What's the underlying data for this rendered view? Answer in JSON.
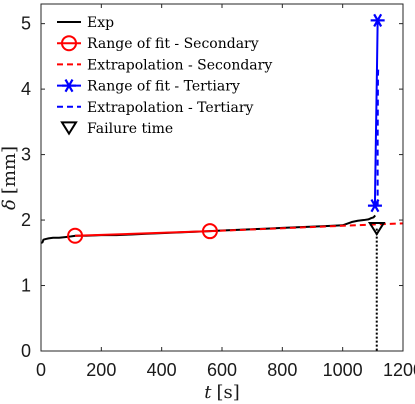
{
  "chart_data": {
    "type": "line",
    "xlabel": {
      "symbol": "t",
      "unit": "[s]"
    },
    "ylabel": {
      "symbol": "δ",
      "unit": "[mm]"
    },
    "xlim": [
      0,
      1200
    ],
    "ylim": [
      0,
      5.3
    ],
    "xticks": [
      0,
      200,
      400,
      600,
      800,
      1000,
      1200
    ],
    "yticks": [
      0,
      1,
      2,
      3,
      4,
      5
    ],
    "grid": false,
    "legend": {
      "placement": "top-left",
      "entries": [
        "Exp",
        "Range of fit - Secondary",
        "Extrapolation - Secondary",
        "Range of fit - Tertiary",
        "Extrapolation - Tertiary",
        "Failure time"
      ]
    },
    "colors": {
      "exp": "#000000",
      "secondary": "#ff0000",
      "tertiary": "#0000ff",
      "failure": "#000000"
    },
    "series": [
      {
        "key": "exp",
        "x": [
          0,
          5,
          8,
          15,
          25,
          40,
          60,
          80,
          100,
          115,
          150,
          200,
          250,
          300,
          350,
          400,
          450,
          500,
          560,
          600,
          650,
          700,
          750,
          800,
          850,
          900,
          950,
          1000,
          1030,
          1050,
          1070,
          1085,
          1095,
          1102,
          1108
        ],
        "y": [
          1.65,
          1.66,
          1.7,
          1.71,
          1.72,
          1.73,
          1.73,
          1.74,
          1.75,
          1.76,
          1.76,
          1.77,
          1.77,
          1.78,
          1.79,
          1.8,
          1.81,
          1.82,
          1.83,
          1.84,
          1.85,
          1.86,
          1.87,
          1.88,
          1.89,
          1.9,
          1.91,
          1.92,
          1.97,
          1.99,
          2.0,
          2.01,
          2.03,
          2.04,
          2.07
        ]
      },
      {
        "key": "secondary_fit",
        "x": [
          113,
          560
        ],
        "y": [
          1.76,
          1.83
        ]
      },
      {
        "key": "secondary_extrap",
        "x": [
          560,
          1200
        ],
        "y": [
          1.83,
          1.95
        ]
      },
      {
        "key": "tertiary_fit",
        "x": [
          1107,
          1108,
          1110,
          1112,
          1114,
          1116
        ],
        "y": [
          2.22,
          2.6,
          3.2,
          3.8,
          4.4,
          5.05
        ]
      },
      {
        "key": "tertiary_extrap",
        "x": [
          1116,
          1116,
          1117,
          1118
        ],
        "y": [
          2.22,
          3.2,
          4.2,
          4.35
        ]
      },
      {
        "key": "failure_time",
        "x": [
          1113,
          1113
        ],
        "y": [
          1.87,
          0
        ]
      }
    ],
    "markers": {
      "secondary": [
        {
          "x": 113,
          "y": 1.76
        },
        {
          "x": 560,
          "y": 1.83
        }
      ],
      "tertiary": [
        {
          "x": 1107,
          "y": 2.22
        },
        {
          "x": 1116,
          "y": 5.05
        }
      ],
      "failure": [
        {
          "x": 1113,
          "y": 1.87
        }
      ]
    }
  }
}
